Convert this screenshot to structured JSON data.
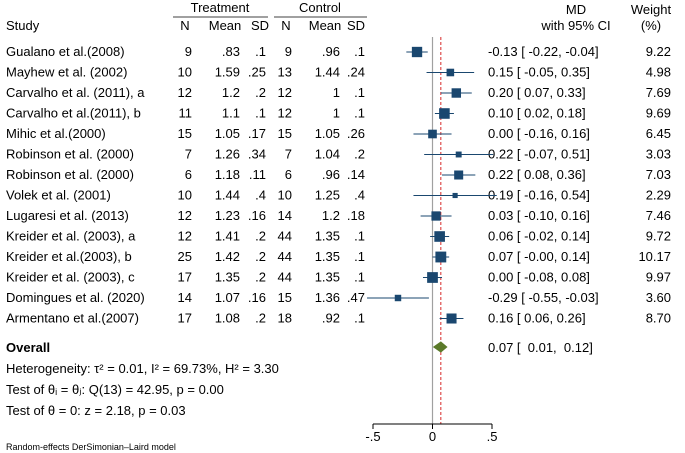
{
  "header": {
    "study": "Study",
    "treatment": "Treatment",
    "control": "Control",
    "n_t": "N",
    "mean_t": "Mean",
    "sd_t": "SD",
    "n_c": "N",
    "mean_c": "Mean",
    "sd_c": "SD",
    "md_line1": "MD",
    "md_line2": "with 95% CI",
    "weight_line1": "Weight",
    "weight_line2": "(%)"
  },
  "overall": {
    "label": "Overall",
    "md_text": "0.07 [  0.01,  0.12]",
    "md": 0.07,
    "lo": 0.01,
    "hi": 0.12
  },
  "footer": {
    "heterogeneity": "Heterogeneity: τ² = 0.01, I² = 69.73%, H² = 3.30",
    "test_theta_i": "Test of θᵢ = θⱼ: Q(13) = 42.95, p = 0.00",
    "test_theta_0": "Test of θ = 0: z = 2.18, p = 0.03",
    "model_note": "Random-effects DerSimonian–Laird model"
  },
  "colors": {
    "marker": "#1a476f",
    "diamond": "#5b7a2a",
    "overall_line": "#d62728",
    "null_line": "#a0a0a0"
  },
  "chart_data": {
    "type": "forest",
    "xlim": [
      -0.5,
      0.5
    ],
    "xticks": [
      -0.5,
      0,
      0.5
    ],
    "xtick_labels": [
      "-.5",
      "0",
      ".5"
    ],
    "null_value": 0,
    "overall_value": 0.07,
    "studies": [
      {
        "study": "Gualano et al.(2008)",
        "n_t": "9",
        "mean_t": ".83",
        "sd_t": ".1",
        "n_c": "9",
        "mean_c": ".96",
        "sd_c": ".1",
        "md": -0.13,
        "lo": -0.22,
        "hi": -0.04,
        "md_text": "-0.13 [ -0.22, -0.04]",
        "weight": 9.22,
        "weight_text": "9.22"
      },
      {
        "study": "Mayhew et al. (2002)",
        "n_t": "10",
        "mean_t": "1.59",
        "sd_t": ".25",
        "n_c": "13",
        "mean_c": "1.44",
        "sd_c": ".24",
        "md": 0.15,
        "lo": -0.05,
        "hi": 0.35,
        "md_text": "0.15 [ -0.05,  0.35]",
        "weight": 4.98,
        "weight_text": "4.98"
      },
      {
        "study": "Carvalho et al. (2011), a",
        "n_t": "12",
        "mean_t": "1.2",
        "sd_t": ".2",
        "n_c": "12",
        "mean_c": "1",
        "sd_c": ".1",
        "md": 0.2,
        "lo": 0.07,
        "hi": 0.33,
        "md_text": "0.20 [  0.07,  0.33]",
        "weight": 7.69,
        "weight_text": "7.69"
      },
      {
        "study": "Carvalho et al.(2011), b",
        "n_t": "11",
        "mean_t": "1.1",
        "sd_t": ".1",
        "n_c": "12",
        "mean_c": "1",
        "sd_c": ".1",
        "md": 0.1,
        "lo": 0.02,
        "hi": 0.18,
        "md_text": "0.10 [  0.02,  0.18]",
        "weight": 9.69,
        "weight_text": "9.69"
      },
      {
        "study": "Mihic et al.(2000)",
        "n_t": "15",
        "mean_t": "1.05",
        "sd_t": ".17",
        "n_c": "15",
        "mean_c": "1.05",
        "sd_c": ".26",
        "md": 0.0,
        "lo": -0.16,
        "hi": 0.16,
        "md_text": "0.00 [ -0.16,  0.16]",
        "weight": 6.45,
        "weight_text": "6.45"
      },
      {
        "study": "Robinson et al. (2000)",
        "n_t": "7",
        "mean_t": "1.26",
        "sd_t": ".34",
        "n_c": "7",
        "mean_c": "1.04",
        "sd_c": ".2",
        "md": 0.22,
        "lo": -0.07,
        "hi": 0.51,
        "md_text": "0.22 [ -0.07,  0.51]",
        "weight": 3.03,
        "weight_text": "3.03"
      },
      {
        "study": "Robinson et al. (2000)",
        "n_t": "6",
        "mean_t": "1.18",
        "sd_t": ".11",
        "n_c": "6",
        "mean_c": ".96",
        "sd_c": ".14",
        "md": 0.22,
        "lo": 0.08,
        "hi": 0.36,
        "md_text": "0.22 [  0.08,  0.36]",
        "weight": 7.03,
        "weight_text": "7.03"
      },
      {
        "study": "Volek et al. (2001)",
        "n_t": "10",
        "mean_t": "1.44",
        "sd_t": ".4",
        "n_c": "10",
        "mean_c": "1.25",
        "sd_c": ".4",
        "md": 0.19,
        "lo": -0.16,
        "hi": 0.54,
        "md_text": "0.19 [ -0.16,  0.54]",
        "weight": 2.29,
        "weight_text": "2.29"
      },
      {
        "study": "Lugaresi et al. (2013)",
        "n_t": "12",
        "mean_t": "1.23",
        "sd_t": ".16",
        "n_c": "14",
        "mean_c": "1.2",
        "sd_c": ".18",
        "md": 0.03,
        "lo": -0.1,
        "hi": 0.16,
        "md_text": "0.03 [ -0.10,  0.16]",
        "weight": 7.46,
        "weight_text": "7.46"
      },
      {
        "study": "Kreider et al. (2003), a",
        "n_t": "12",
        "mean_t": "1.41",
        "sd_t": ".2",
        "n_c": "44",
        "mean_c": "1.35",
        "sd_c": ".1",
        "md": 0.06,
        "lo": -0.02,
        "hi": 0.14,
        "md_text": "0.06 [ -0.02,  0.14]",
        "weight": 9.72,
        "weight_text": "9.72"
      },
      {
        "study": "Kreider et al.(2003), b",
        "n_t": "25",
        "mean_t": "1.42",
        "sd_t": ".2",
        "n_c": "44",
        "mean_c": "1.35",
        "sd_c": ".1",
        "md": 0.07,
        "lo": -0.0,
        "hi": 0.14,
        "md_text": "0.07 [ -0.00,  0.14]",
        "weight": 10.17,
        "weight_text": "10.17"
      },
      {
        "study": "Kreider et al. (2003), c",
        "n_t": "17",
        "mean_t": "1.35",
        "sd_t": ".2",
        "n_c": "44",
        "mean_c": "1.35",
        "sd_c": ".1",
        "md": 0.0,
        "lo": -0.08,
        "hi": 0.08,
        "md_text": "0.00 [ -0.08,  0.08]",
        "weight": 9.97,
        "weight_text": "9.97"
      },
      {
        "study": "Domingues et al. (2020)",
        "n_t": "14",
        "mean_t": "1.07",
        "sd_t": ".16",
        "n_c": "15",
        "mean_c": "1.36",
        "sd_c": ".47",
        "md": -0.29,
        "lo": -0.55,
        "hi": -0.03,
        "md_text": "-0.29 [ -0.55, -0.03]",
        "weight": 3.6,
        "weight_text": "3.60"
      },
      {
        "study": "Armentano et al.(2007)",
        "n_t": "17",
        "mean_t": "1.08",
        "sd_t": ".2",
        "n_c": "18",
        "mean_c": ".92",
        "sd_c": ".1",
        "md": 0.16,
        "lo": 0.06,
        "hi": 0.26,
        "md_text": "0.16 [  0.06,  0.26]",
        "weight": 8.7,
        "weight_text": "8.70"
      }
    ]
  }
}
